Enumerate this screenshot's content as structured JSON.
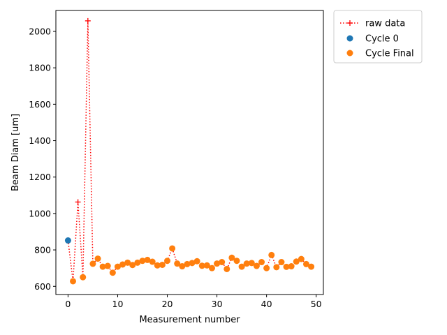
{
  "chart_data": {
    "type": "scatter",
    "xlabel": "Measurement number",
    "ylabel": "Beam Diam [um]",
    "xlim": [
      -2.45,
      51.45
    ],
    "ylim": [
      555,
      2115
    ],
    "x_ticks": [
      0,
      10,
      20,
      30,
      40,
      50
    ],
    "y_ticks": [
      600,
      800,
      1000,
      1200,
      1400,
      1600,
      1800,
      2000
    ],
    "grid": false,
    "legend_position": "outside upper right",
    "series": [
      {
        "name": "raw data",
        "style": "dotted line with plus markers",
        "color": "#ff0000",
        "x": [
          0,
          1,
          2,
          3,
          4,
          5,
          6,
          7,
          8,
          9,
          10,
          11,
          12,
          13,
          14,
          15,
          16,
          17,
          18,
          19,
          20,
          21,
          22,
          23,
          24,
          25,
          26,
          27,
          28,
          29,
          30,
          31,
          32,
          33,
          34,
          35,
          36,
          37,
          38,
          39,
          40,
          41,
          42,
          43,
          44,
          45,
          46,
          47,
          48,
          49
        ],
        "y": [
          852,
          628,
          1063,
          650,
          2058,
          724,
          752,
          708,
          712,
          675,
          708,
          720,
          730,
          717,
          730,
          740,
          745,
          735,
          715,
          718,
          740,
          808,
          725,
          710,
          722,
          728,
          738,
          713,
          715,
          700,
          725,
          733,
          695,
          757,
          740,
          708,
          725,
          728,
          712,
          733,
          700,
          772,
          705,
          733,
          707,
          710,
          736,
          750,
          722,
          708
        ]
      },
      {
        "name": "Cycle 0",
        "style": "scatter",
        "color": "#1f77b4",
        "x": [
          0
        ],
        "y": [
          852
        ]
      },
      {
        "name": "Cycle Final",
        "style": "scatter",
        "color": "#ff7f0e",
        "x": [
          1,
          3,
          5,
          6,
          7,
          8,
          9,
          10,
          11,
          12,
          13,
          14,
          15,
          16,
          17,
          18,
          19,
          20,
          21,
          22,
          23,
          24,
          25,
          26,
          27,
          28,
          29,
          30,
          31,
          32,
          33,
          34,
          35,
          36,
          37,
          38,
          39,
          40,
          41,
          42,
          43,
          44,
          45,
          46,
          47,
          48,
          49
        ],
        "y": [
          628,
          650,
          724,
          752,
          708,
          712,
          675,
          708,
          720,
          730,
          717,
          730,
          740,
          745,
          735,
          715,
          718,
          740,
          808,
          725,
          710,
          722,
          728,
          738,
          713,
          715,
          700,
          725,
          733,
          695,
          757,
          740,
          708,
          725,
          728,
          712,
          733,
          700,
          772,
          705,
          733,
          707,
          710,
          736,
          750,
          722,
          708
        ]
      }
    ]
  }
}
